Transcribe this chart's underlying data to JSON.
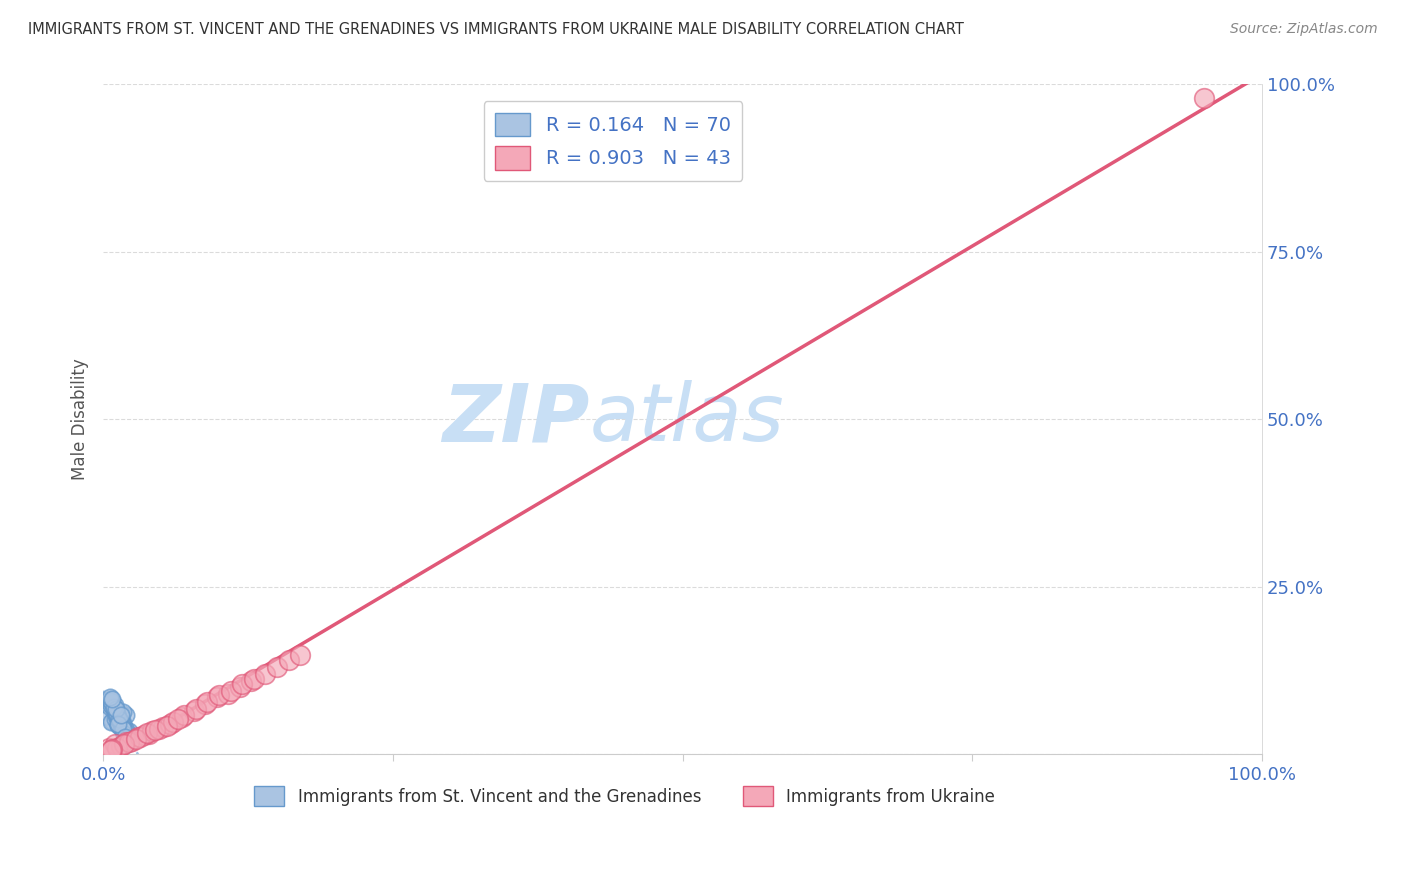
{
  "title": "IMMIGRANTS FROM ST. VINCENT AND THE GRENADINES VS IMMIGRANTS FROM UKRAINE MALE DISABILITY CORRELATION CHART",
  "source": "Source: ZipAtlas.com",
  "ylabel": "Male Disability",
  "xlim": [
    0.0,
    1.0
  ],
  "ylim": [
    0.0,
    1.0
  ],
  "xticks": [
    0.0,
    0.25,
    0.5,
    0.75,
    1.0
  ],
  "yticks": [
    0.0,
    0.25,
    0.5,
    0.75,
    1.0
  ],
  "xtick_labels": [
    "0.0%",
    "",
    "",
    "",
    "100.0%"
  ],
  "ytick_labels": [
    "",
    "25.0%",
    "50.0%",
    "75.0%",
    "100.0%"
  ],
  "series1_label": "Immigrants from St. Vincent and the Grenadines",
  "series2_label": "Immigrants from Ukraine",
  "series1_R": "0.164",
  "series1_N": "70",
  "series2_R": "0.903",
  "series2_N": "43",
  "series1_color": "#aac4e2",
  "series2_color": "#f4a8b8",
  "series1_edge_color": "#6699cc",
  "series2_edge_color": "#e05878",
  "series1_line_color": "#99bbdd",
  "series2_line_color": "#e05878",
  "background_color": "#ffffff",
  "watermark": "ZIPatlas",
  "watermark_color": "#d0e8f8",
  "grid_color": "#cccccc",
  "legend_color": "#4472c4",
  "title_color": "#333333",
  "series1_x": [
    0.005,
    0.008,
    0.012,
    0.015,
    0.01,
    0.018,
    0.02,
    0.007,
    0.013,
    0.016,
    0.009,
    0.022,
    0.011,
    0.014,
    0.006,
    0.019,
    0.017,
    0.021,
    0.008,
    0.01,
    0.013,
    0.015,
    0.012,
    0.018,
    0.007,
    0.016,
    0.02,
    0.009,
    0.011,
    0.014,
    0.006,
    0.019,
    0.017,
    0.022,
    0.008,
    0.013,
    0.015,
    0.01,
    0.016,
    0.012,
    0.018,
    0.007,
    0.02,
    0.009,
    0.014,
    0.011,
    0.017,
    0.021,
    0.006,
    0.019,
    0.013,
    0.015,
    0.008,
    0.016,
    0.012,
    0.022,
    0.01,
    0.014,
    0.007,
    0.018,
    0.009,
    0.02,
    0.011,
    0.017,
    0.006,
    0.013,
    0.015,
    0.019,
    0.021,
    0.008
  ],
  "series1_y": [
    0.055,
    0.05,
    0.06,
    0.045,
    0.065,
    0.04,
    0.058,
    0.048,
    0.052,
    0.042,
    0.068,
    0.035,
    0.062,
    0.055,
    0.07,
    0.038,
    0.047,
    0.032,
    0.072,
    0.053,
    0.044,
    0.061,
    0.057,
    0.033,
    0.075,
    0.041,
    0.036,
    0.066,
    0.059,
    0.049,
    0.078,
    0.028,
    0.063,
    0.025,
    0.08,
    0.043,
    0.039,
    0.067,
    0.046,
    0.054,
    0.031,
    0.073,
    0.027,
    0.069,
    0.051,
    0.064,
    0.037,
    0.022,
    0.082,
    0.034,
    0.056,
    0.048,
    0.076,
    0.04,
    0.06,
    0.018,
    0.074,
    0.053,
    0.079,
    0.03,
    0.071,
    0.023,
    0.068,
    0.038,
    0.085,
    0.045,
    0.058,
    0.026,
    0.015,
    0.082
  ],
  "series2_x": [
    0.005,
    0.01,
    0.02,
    0.03,
    0.04,
    0.015,
    0.025,
    0.035,
    0.012,
    0.022,
    0.032,
    0.042,
    0.052,
    0.018,
    0.028,
    0.038,
    0.048,
    0.058,
    0.068,
    0.078,
    0.088,
    0.098,
    0.108,
    0.118,
    0.128,
    0.008,
    0.06,
    0.07,
    0.08,
    0.09,
    0.1,
    0.11,
    0.12,
    0.13,
    0.14,
    0.15,
    0.16,
    0.17,
    0.007,
    0.045,
    0.055,
    0.065,
    0.95
  ],
  "series2_y": [
    0.01,
    0.015,
    0.018,
    0.025,
    0.03,
    0.012,
    0.02,
    0.028,
    0.01,
    0.018,
    0.025,
    0.035,
    0.04,
    0.015,
    0.022,
    0.032,
    0.038,
    0.045,
    0.055,
    0.065,
    0.075,
    0.085,
    0.09,
    0.1,
    0.11,
    0.008,
    0.048,
    0.058,
    0.068,
    0.078,
    0.088,
    0.095,
    0.105,
    0.112,
    0.12,
    0.13,
    0.14,
    0.148,
    0.006,
    0.036,
    0.042,
    0.052,
    0.98
  ],
  "line1_x0": 0.0,
  "line1_y0": 0.03,
  "line1_x1": 1.0,
  "line1_y1": 1.0,
  "line2_x0": 0.0,
  "line2_y0": 0.005,
  "line2_x1": 1.0,
  "line2_y1": 1.0
}
